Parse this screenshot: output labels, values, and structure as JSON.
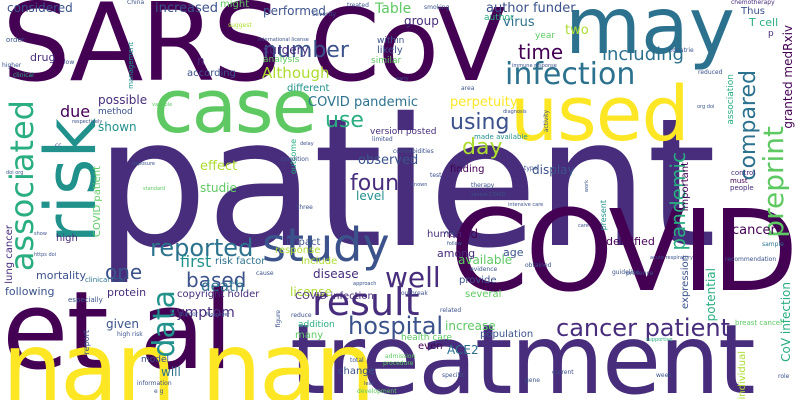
{
  "words": [
    "patient",
    "SARS",
    "CoV",
    "COVID",
    "et al",
    "treatment",
    "nan nan",
    "may",
    "case",
    "used",
    "risk",
    "infection",
    "study",
    "associated",
    "data",
    "result",
    "cancer patient",
    "hospital",
    "preprint",
    "reported",
    "number",
    "well",
    "including",
    "compared",
    "pandemic",
    "found",
    "day",
    "use",
    "using",
    "time",
    "one",
    "based",
    "first",
    "death",
    "symptom",
    "COVID pandemic",
    "perpetuity",
    "increased",
    "performed",
    "Table",
    "author funder",
    "group",
    "virus",
    "considered",
    "drug",
    "surgery",
    "Although",
    "due",
    "possible",
    "shown",
    "observed",
    "effect",
    "level",
    "need",
    "display",
    "studie",
    "given",
    "protein",
    "license",
    "disease",
    "copyright holder",
    "COVID infection",
    "increase",
    "available",
    "ACE2",
    "granted medRxiv",
    "CoV infection",
    "potential",
    "cancer",
    "mortality",
    "lung cancer",
    "COVID patient",
    "high",
    "following",
    "include",
    "risk factor",
    "impact",
    "among",
    "human",
    "identified",
    "age",
    "provide",
    "several",
    "population",
    "health care",
    "addition",
    "many",
    "will",
    "model",
    "change",
    "even",
    "according",
    "n",
    "analysis",
    "within",
    "likely",
    "similar",
    "different",
    "outcome",
    "version posted",
    "made available",
    "finding",
    "present",
    "expression",
    "individual",
    "association",
    "important",
    "T cell",
    "Thus",
    "chemotherapy",
    "two",
    "year",
    "p",
    "author",
    "might",
    "China",
    "reduced",
    "countrie",
    "clinical trial",
    "respectively",
    "method",
    "management",
    "variable",
    "order",
    "higher",
    "low",
    "clinical",
    "control",
    "must",
    "people",
    "sample",
    "recommendation",
    "breast cancer",
    "tumor",
    "especially",
    "report",
    "high risk",
    "information",
    "e g",
    "role",
    "current",
    "gene",
    "development",
    "less",
    "total",
    "admission",
    "procedure",
    "specific",
    "week",
    "guideline",
    "supportive",
    "evidence",
    "obtained",
    "presence",
    "related",
    "Moreover",
    "figure",
    "reduce",
    "approach",
    "outbreak",
    "response",
    "limited",
    "known",
    "test",
    "comorbidities",
    "condition",
    "delay",
    "cause",
    "smoking",
    "severity",
    "treated",
    "suggest",
    "exposure",
    "doi org",
    "https doi",
    "show",
    "cc",
    "type",
    "work",
    "therapy",
    "diagnosis",
    "activity",
    "early",
    "area",
    "severe COVID",
    "three",
    "follow",
    "new",
    "standard",
    "acute respiratory",
    "international license",
    "intensive care",
    "immune response",
    "care",
    "org doi"
  ],
  "colors": [
    "#440154",
    "#472d7b",
    "#3b528b",
    "#2c728e",
    "#21918c",
    "#28ae80",
    "#5ec962",
    "#addc30",
    "#fde725"
  ]
}
